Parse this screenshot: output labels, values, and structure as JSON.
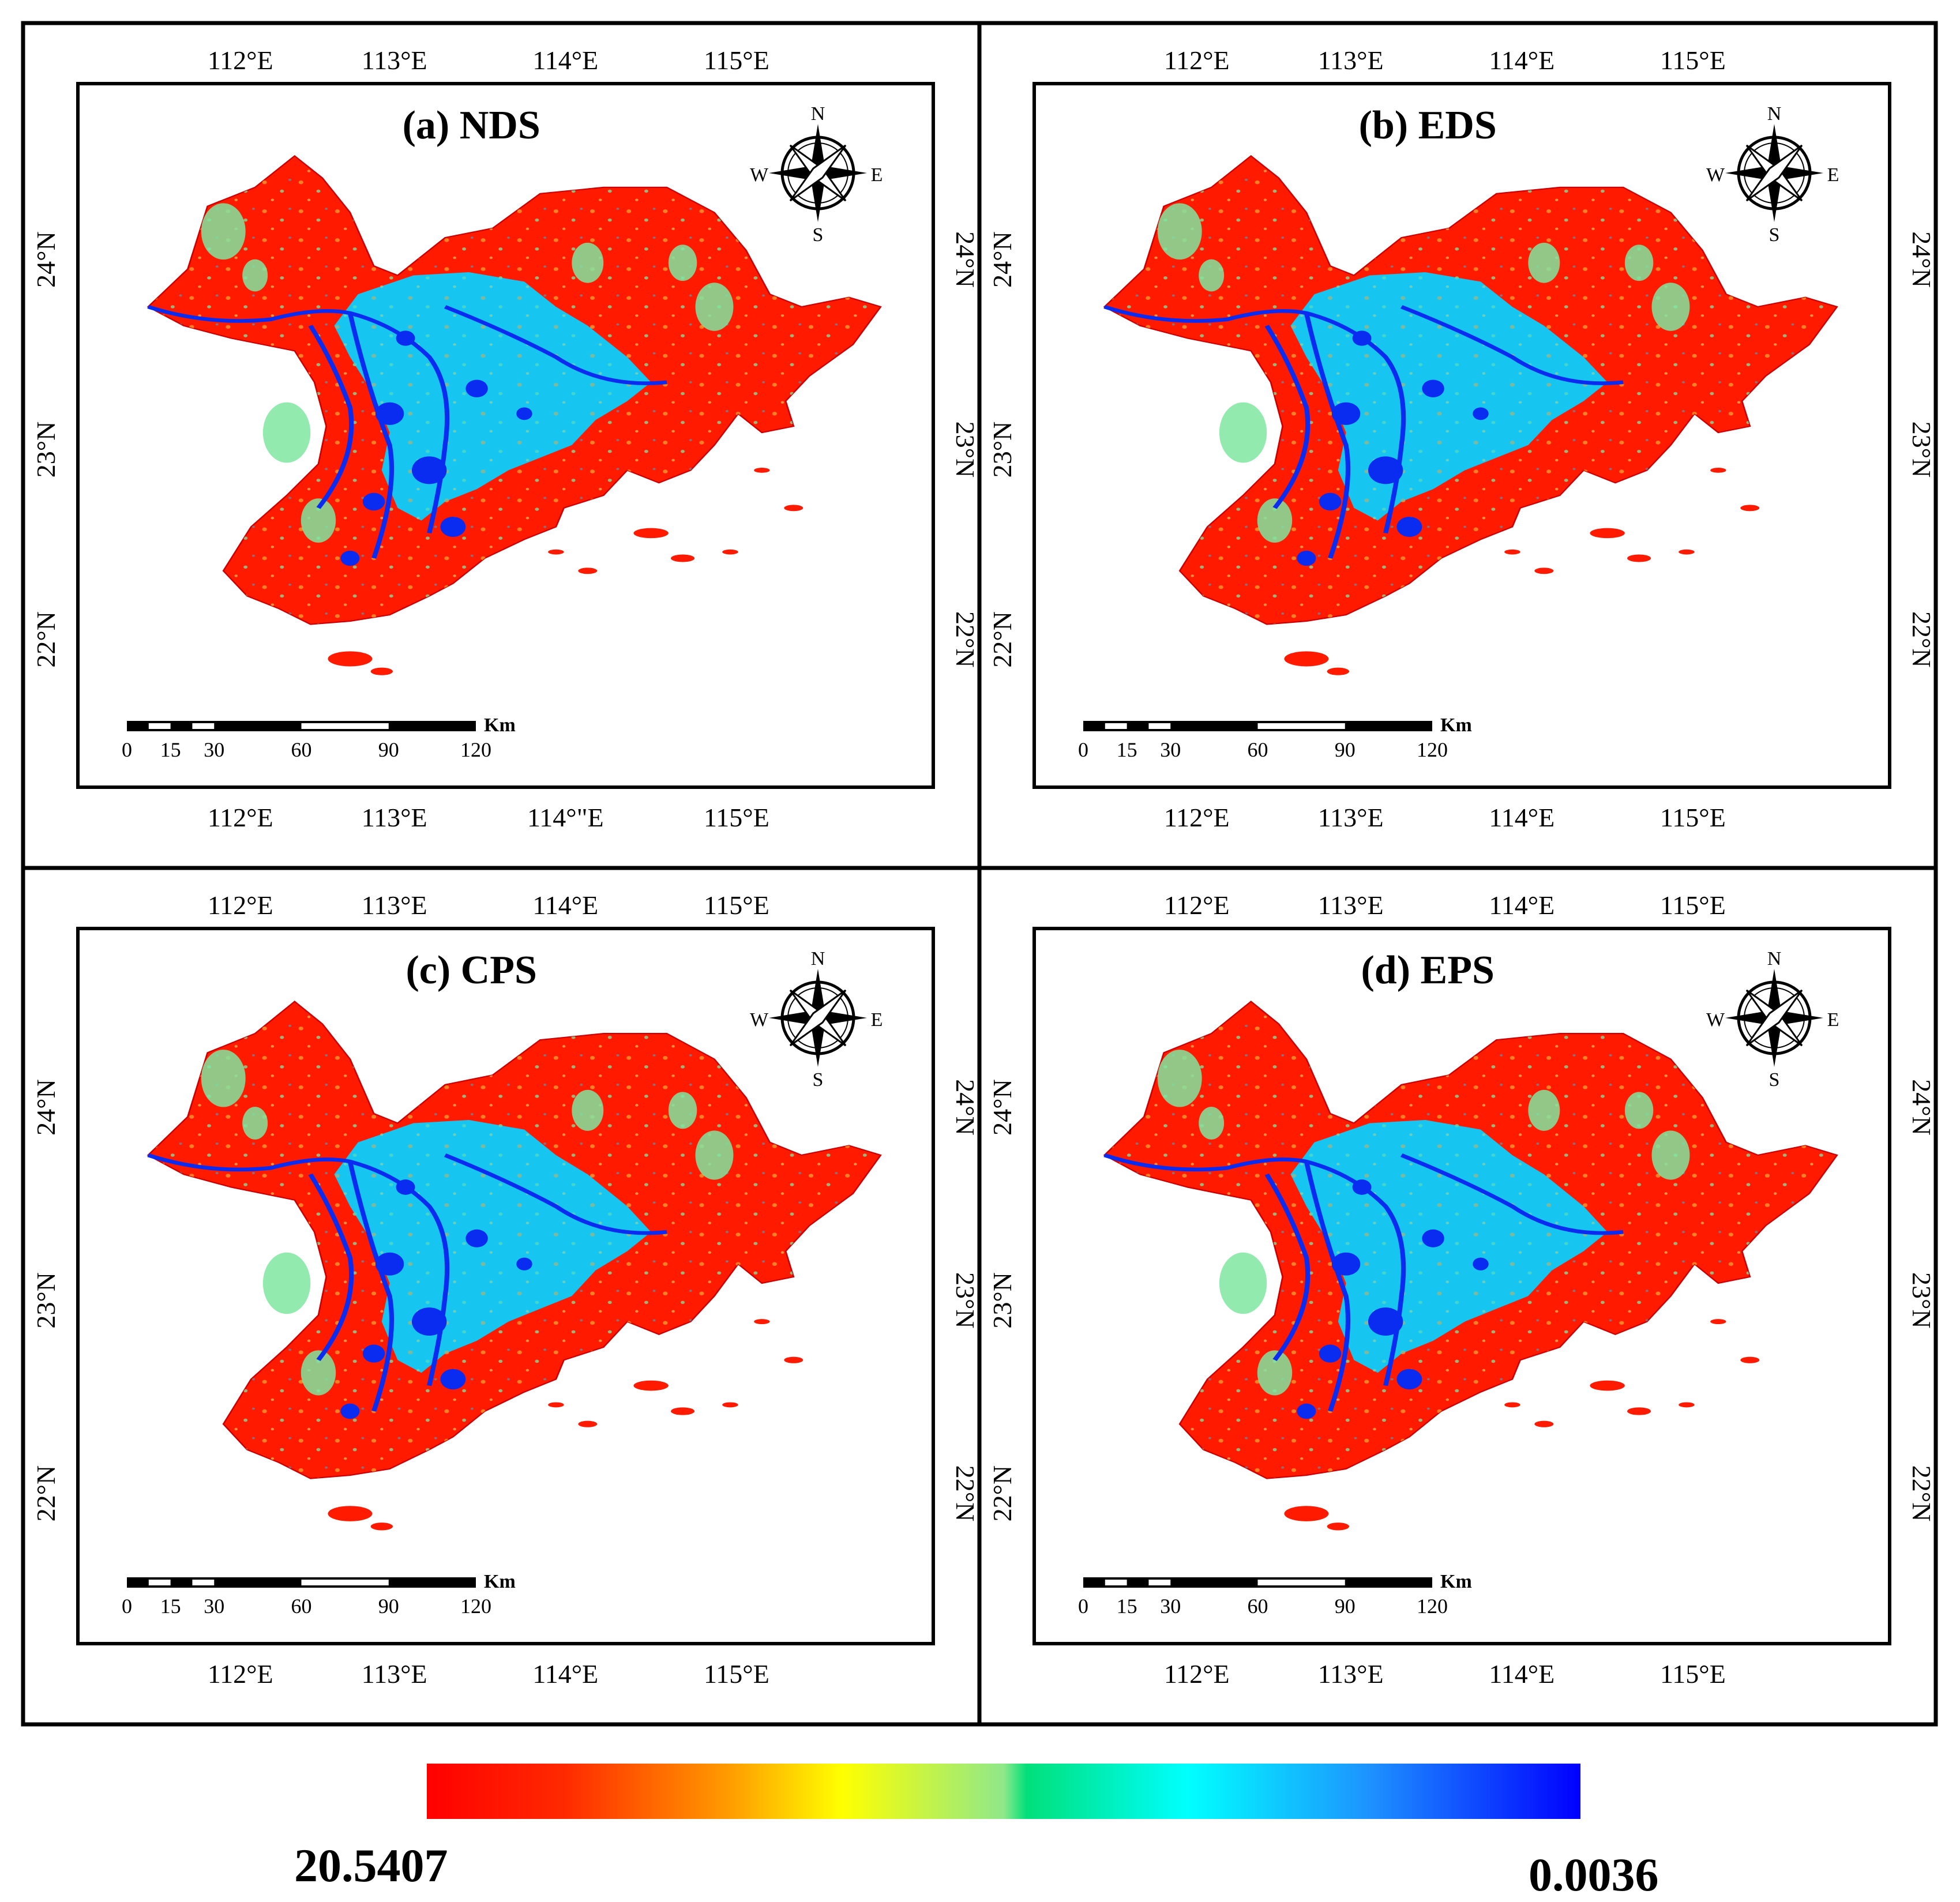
{
  "panels": [
    {
      "id": "a",
      "title": "(a) NDS",
      "top_lon_labels": [
        "112°E",
        "113°E",
        "114°E",
        "115°E"
      ],
      "bottom_lon_labels": [
        "112°E",
        "113°E",
        "114°\"E",
        "115°E"
      ],
      "lat_labels": [
        "24°N",
        "23°N",
        "22°N"
      ]
    },
    {
      "id": "b",
      "title": "(b) EDS",
      "top_lon_labels": [
        "112°E",
        "113°E",
        "114°E",
        "115°E"
      ],
      "bottom_lon_labels": [
        "112°E",
        "113°E",
        "114°E",
        "115°E"
      ],
      "lat_labels": [
        "24°N",
        "23°N",
        "22°N"
      ]
    },
    {
      "id": "c",
      "title": "(c) CPS",
      "top_lon_labels": [
        "112°E",
        "113°E",
        "114°E",
        "115°E"
      ],
      "bottom_lon_labels": [
        "112°E",
        "113°E",
        "114°E",
        "115°E"
      ],
      "lat_labels": [
        "24°N",
        "23°N",
        "22°N"
      ]
    },
    {
      "id": "d",
      "title": "(d) EPS",
      "top_lon_labels": [
        "112°E",
        "113°E",
        "114°E",
        "115°E"
      ],
      "bottom_lon_labels": [
        "112°E",
        "113°E",
        "114°E",
        "115°E"
      ],
      "lat_labels": [
        "24°N",
        "23°N",
        "22°N"
      ]
    }
  ],
  "compass": {
    "n": "N",
    "s": "S",
    "e": "E",
    "w": "W",
    "icon": "compass-rose-icon"
  },
  "scale_bar": {
    "unit": "Km",
    "ticks": [
      "0",
      "15",
      "30",
      "60",
      "90",
      "120"
    ]
  },
  "legend": {
    "max_label": "20.5407",
    "min_label": "0.0036",
    "colors": [
      "#ff0000",
      "#ff6a00",
      "#ffaa00",
      "#ffff00",
      "#9be87a",
      "#00e27a",
      "#00ffff",
      "#1e90ff",
      "#0000ff"
    ]
  },
  "colors": {
    "high": "#ff1a00",
    "mid": "#7fe6a0",
    "low_light": "#17c6f0",
    "low": "#0a2cf0"
  }
}
